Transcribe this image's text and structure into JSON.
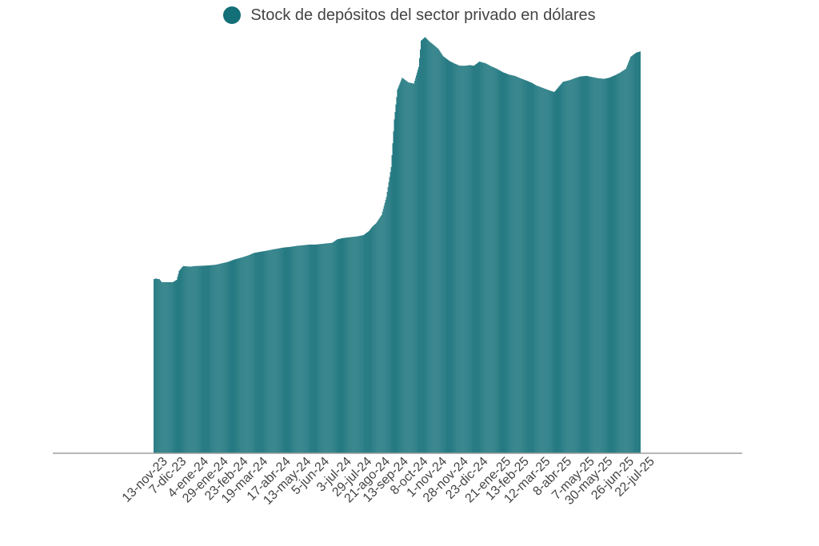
{
  "legend": {
    "label": "Stock de depósitos del sector privado en dólares"
  },
  "colors": {
    "series": "#136f78",
    "axis": "#9e9e9e",
    "text": "#444444"
  },
  "chart_data": {
    "type": "bar",
    "title": "",
    "xlabel": "",
    "ylabel": "",
    "y_axis_shown": false,
    "grid": false,
    "legend_position": "top",
    "ylim": [
      0,
      36000
    ],
    "series": [
      {
        "name": "Stock de depósitos del sector privado en dólares",
        "color": "#136f78"
      }
    ],
    "anchors": [
      [
        "13-nov-23",
        14600
      ],
      [
        "15-nov-23",
        14650
      ],
      [
        "20-nov-23",
        14600
      ],
      [
        "23-nov-23",
        14350
      ],
      [
        "28-nov-23",
        14350
      ],
      [
        "1-dic-23",
        14350
      ],
      [
        "7-dic-23",
        14350
      ],
      [
        "12-dic-23",
        14550
      ],
      [
        "15-dic-23",
        15300
      ],
      [
        "20-dic-23",
        15700
      ],
      [
        "29-dic-23",
        15650
      ],
      [
        "4-ene-24",
        15700
      ],
      [
        "12-ene-24",
        15720
      ],
      [
        "22-ene-24",
        15760
      ],
      [
        "29-ene-24",
        15800
      ],
      [
        "2-feb-24",
        15850
      ],
      [
        "15-feb-24",
        16050
      ],
      [
        "23-feb-24",
        16250
      ],
      [
        "5-mar-24",
        16450
      ],
      [
        "12-mar-24",
        16600
      ],
      [
        "19-mar-24",
        16800
      ],
      [
        "27-mar-24",
        16900
      ],
      [
        "5-abr-24",
        17000
      ],
      [
        "12-abr-24",
        17100
      ],
      [
        "17-abr-24",
        17150
      ],
      [
        "25-abr-24",
        17250
      ],
      [
        "3-may-24",
        17300
      ],
      [
        "13-may-24",
        17400
      ],
      [
        "21-may-24",
        17450
      ],
      [
        "28-may-24",
        17500
      ],
      [
        "5-jun-24",
        17500
      ],
      [
        "12-jun-24",
        17550
      ],
      [
        "19-jun-24",
        17600
      ],
      [
        "26-jun-24",
        17650
      ],
      [
        "3-jul-24",
        17950
      ],
      [
        "10-jul-24",
        18050
      ],
      [
        "16-jul-24",
        18100
      ],
      [
        "23-jul-24",
        18150
      ],
      [
        "29-jul-24",
        18200
      ],
      [
        "5-ago-24",
        18300
      ],
      [
        "12-ago-24",
        18650
      ],
      [
        "16-ago-24",
        19000
      ],
      [
        "21-ago-24",
        19300
      ],
      [
        "28-ago-24",
        20000
      ],
      [
        "3-sep-24",
        21500
      ],
      [
        "9-sep-24",
        24000
      ],
      [
        "13-sep-24",
        28000
      ],
      [
        "17-sep-24",
        30500
      ],
      [
        "23-sep-24",
        31500
      ],
      [
        "1-oct-24",
        31100
      ],
      [
        "8-oct-24",
        31000
      ],
      [
        "14-oct-24",
        32400
      ],
      [
        "17-oct-24",
        34600
      ],
      [
        "22-oct-24",
        34900
      ],
      [
        "28-oct-24",
        34500
      ],
      [
        "1-nov-24",
        34300
      ],
      [
        "8-nov-24",
        33900
      ],
      [
        "14-nov-24",
        33300
      ],
      [
        "22-nov-24",
        32900
      ],
      [
        "28-nov-24",
        32700
      ],
      [
        "5-dic-24",
        32500
      ],
      [
        "12-dic-24",
        32500
      ],
      [
        "18-dic-24",
        32550
      ],
      [
        "23-dic-24",
        32500
      ],
      [
        "30-dic-24",
        32850
      ],
      [
        "7-ene-25",
        32700
      ],
      [
        "14-ene-25",
        32450
      ],
      [
        "21-ene-25",
        32250
      ],
      [
        "29-ene-25",
        31950
      ],
      [
        "6-feb-25",
        31750
      ],
      [
        "13-feb-25",
        31650
      ],
      [
        "20-feb-25",
        31450
      ],
      [
        "28-feb-25",
        31250
      ],
      [
        "7-mar-25",
        31050
      ],
      [
        "12-mar-25",
        30850
      ],
      [
        "20-mar-25",
        30650
      ],
      [
        "28-mar-25",
        30450
      ],
      [
        "4-abr-25",
        30300
      ],
      [
        "8-abr-25",
        30600
      ],
      [
        "15-abr-25",
        31150
      ],
      [
        "24-abr-25",
        31300
      ],
      [
        "30-abr-25",
        31450
      ],
      [
        "7-may-25",
        31600
      ],
      [
        "15-may-25",
        31650
      ],
      [
        "22-may-25",
        31550
      ],
      [
        "30-may-25",
        31450
      ],
      [
        "6-jun-25",
        31400
      ],
      [
        "13-jun-25",
        31500
      ],
      [
        "20-jun-25",
        31700
      ],
      [
        "26-jun-25",
        31900
      ],
      [
        "4-jul-25",
        32250
      ],
      [
        "10-jul-25",
        33250
      ],
      [
        "17-jul-25",
        33600
      ],
      [
        "22-jul-25",
        33700
      ]
    ],
    "x_tick_labels": [
      "13-nov-23",
      "7-dic-23",
      "4-ene-24",
      "29-ene-24",
      "23-feb-24",
      "19-mar-24",
      "17-abr-24",
      "13-may-24",
      "5-jun-24",
      "3-jul-24",
      "29-jul-24",
      "21-ago-24",
      "13-sep-24",
      "8-oct-24",
      "1-nov-24",
      "28-nov-24",
      "23-dic-24",
      "21-ene-25",
      "13-feb-25",
      "12-mar-25",
      "8-abr-25",
      "7-may-25",
      "30-may-25",
      "26-jun-25",
      "22-jul-25"
    ]
  }
}
